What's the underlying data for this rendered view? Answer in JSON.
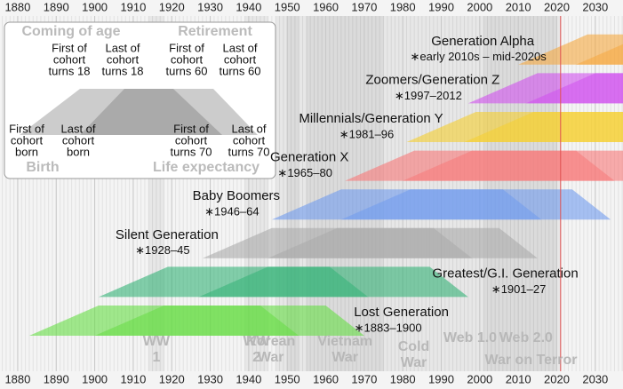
{
  "chart_data": {
    "type": "timeline",
    "xlim": [
      1875.4,
      2037.2
    ],
    "xticks": [
      1880,
      1890,
      1900,
      1910,
      1920,
      1930,
      1940,
      1950,
      1960,
      1970,
      1980,
      1990,
      2000,
      2010,
      2020,
      2030
    ],
    "current_year": 2021,
    "current_year_color": "#e05050",
    "generations": [
      {
        "name": "Lost Generation",
        "years": "∗1883–1900",
        "start": 1883,
        "end": 1900,
        "color": "#66dd44"
      },
      {
        "name": "Greatest/G.I. Generation",
        "years": "∗1901–27",
        "start": 1901,
        "end": 1927,
        "color": "#33b377"
      },
      {
        "name": "Silent Generation",
        "years": "∗1928–45",
        "start": 1928,
        "end": 1945,
        "color": "#aaaaaa"
      },
      {
        "name": "Baby Boomers",
        "years": "∗1946–64",
        "start": 1946,
        "end": 1964,
        "color": "#6f9bef"
      },
      {
        "name": "Generation X",
        "years": "∗1965–80",
        "start": 1965,
        "end": 1980,
        "color": "#f87878"
      },
      {
        "name": "Millennials/Generation Y",
        "years": "∗1981–96",
        "start": 1981,
        "end": 1996,
        "color": "#f5cf2e"
      },
      {
        "name": "Zoomers/Generation Z",
        "years": "∗1997–2012",
        "start": 1997,
        "end": 2012,
        "color": "#d050ee"
      },
      {
        "name": "Generation Alpha",
        "years": "∗early 2010s – mid-2020s",
        "start": 2010,
        "end": 2025,
        "color": "#f5a840"
      }
    ],
    "events": [
      {
        "lines": [
          "WW",
          "1"
        ],
        "start": 1914,
        "end": 1918
      },
      {
        "lines": [
          "WW",
          "2"
        ],
        "start": 1939,
        "end": 1945
      },
      {
        "lines": [
          "Korean",
          "War"
        ],
        "start": 1950,
        "end": 1953
      },
      {
        "lines": [
          "Vietnam",
          "War"
        ],
        "start": 1955,
        "end": 1975
      },
      {
        "lines": [
          "Cold",
          "War"
        ],
        "start": 1947,
        "end": 1991
      },
      {
        "lines": [
          "Web 1.0"
        ],
        "start": 1991,
        "end": 2004
      },
      {
        "lines": [
          "Web 2.0"
        ],
        "start": 2004,
        "end": 2020
      },
      {
        "lines": [
          "War on Terror"
        ],
        "start": 2001,
        "end": 2021
      }
    ],
    "legend": {
      "top_left": "Coming of age",
      "top_right": "Retirement",
      "bottom_left": "Birth",
      "bottom_right": "Life expectancy",
      "first_18": [
        "First of",
        "cohort",
        "turns 18"
      ],
      "last_18": [
        "Last of",
        "cohort",
        "turns 18"
      ],
      "first_60": [
        "First of",
        "cohort",
        "turns 60"
      ],
      "last_60": [
        "Last of",
        "cohort",
        "turns 60"
      ],
      "first_born": [
        "First of",
        "cohort",
        "born"
      ],
      "last_born": [
        "Last of",
        "cohort",
        "born"
      ],
      "first_70": [
        "First of",
        "cohort",
        "turns 70"
      ],
      "last_70": [
        "Last of",
        "cohort",
        "turns 70"
      ]
    }
  }
}
